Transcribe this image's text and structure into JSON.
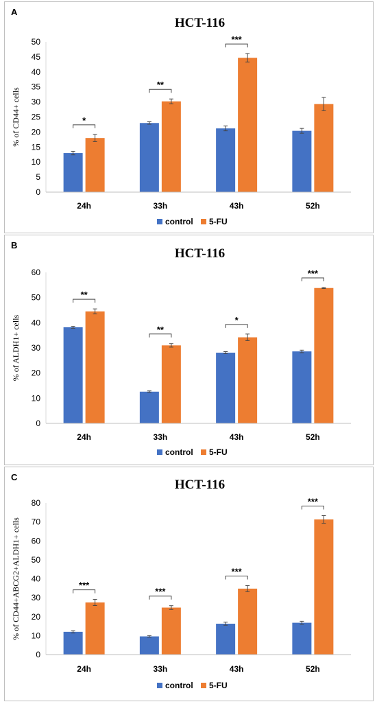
{
  "chart_data": [
    {
      "panel": "A",
      "type": "bar",
      "title": "HCT-116",
      "xlabel": "",
      "ylabel": "% of CD44+ cells",
      "categories": [
        "24h",
        "33h",
        "43h",
        "52h"
      ],
      "ylim": [
        0,
        50
      ],
      "yticks": [
        0,
        5,
        10,
        15,
        20,
        25,
        30,
        35,
        40,
        45,
        50
      ],
      "series": [
        {
          "name": "control",
          "color": "#4472c4",
          "values": [
            13,
            23,
            21.2,
            20.4
          ],
          "errors": [
            0.6,
            0.4,
            0.8,
            0.8
          ]
        },
        {
          "name": "5-FU",
          "color": "#ed7d31",
          "values": [
            18,
            30.2,
            44.7,
            29.3
          ],
          "errors": [
            1.2,
            0.8,
            1.4,
            2.2
          ]
        }
      ],
      "significance": [
        "*",
        "**",
        "***",
        ""
      ],
      "legend_position": "bottom",
      "grid": false
    },
    {
      "panel": "B",
      "type": "bar",
      "title": "HCT-116",
      "xlabel": "",
      "ylabel": "% of ALDH1+ cells",
      "categories": [
        "24h",
        "33h",
        "43h",
        "52h"
      ],
      "ylim": [
        0,
        60
      ],
      "yticks": [
        0,
        10,
        20,
        30,
        40,
        50,
        60
      ],
      "series": [
        {
          "name": "control",
          "color": "#4472c4",
          "values": [
            38.2,
            12.6,
            28.1,
            28.6
          ],
          "errors": [
            0.4,
            0.3,
            0.4,
            0.5
          ]
        },
        {
          "name": "5-FU",
          "color": "#ed7d31",
          "values": [
            44.5,
            31,
            34.2,
            53.8
          ],
          "errors": [
            1,
            0.7,
            1.3,
            0.2
          ]
        }
      ],
      "significance": [
        "**",
        "**",
        "*",
        "***"
      ],
      "legend_position": "bottom",
      "grid": false
    },
    {
      "panel": "C",
      "type": "bar",
      "title": "HCT-116",
      "xlabel": "",
      "ylabel": "% of CD44+ABCG2+ALDH1+ cells",
      "categories": [
        "24h",
        "33h",
        "43h",
        "52h"
      ],
      "ylim": [
        0,
        80
      ],
      "yticks": [
        0,
        10,
        20,
        30,
        40,
        50,
        60,
        70,
        80
      ],
      "series": [
        {
          "name": "control",
          "color": "#4472c4",
          "values": [
            12,
            9.6,
            16.3,
            16.8
          ],
          "errors": [
            0.6,
            0.4,
            0.8,
            0.8
          ]
        },
        {
          "name": "5-FU",
          "color": "#ed7d31",
          "values": [
            27.5,
            24.8,
            34.8,
            71.3
          ],
          "errors": [
            1.6,
            1,
            1.6,
            2
          ]
        }
      ],
      "significance": [
        "***",
        "***",
        "***",
        "***"
      ],
      "legend_position": "bottom",
      "grid": false
    }
  ]
}
